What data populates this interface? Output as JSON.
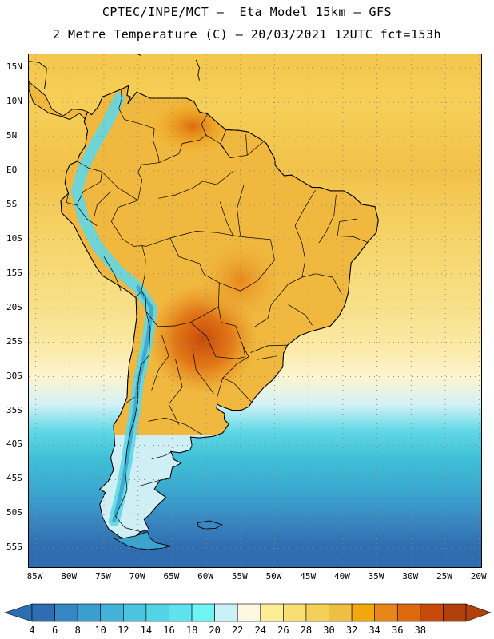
{
  "title": {
    "line1": "CPTEC/INPE/MCT –  Eta Model 15km – GFS",
    "line2": "2 Metre Temperature (C) – 20/03/2021 12UTC fct=153h"
  },
  "map": {
    "extent": {
      "lon_min": -86,
      "lon_max": -19.5,
      "lat_min": -58,
      "lat_max": 17
    },
    "lat_labels": [
      "15N",
      "10N",
      "5N",
      "EQ",
      "5S",
      "10S",
      "15S",
      "20S",
      "25S",
      "30S",
      "35S",
      "40S",
      "45S",
      "50S",
      "55S"
    ],
    "lon_labels": [
      "85W",
      "80W",
      "75W",
      "70W",
      "65W",
      "60W",
      "55W",
      "50W",
      "45W",
      "40W",
      "35W",
      "30W",
      "25W",
      "20W"
    ],
    "ocean_bands": [
      {
        "lat": 17,
        "color": "#f4c64c"
      },
      {
        "lat": 10,
        "color": "#f6cf58"
      },
      {
        "lat": 0,
        "color": "#f2c24a"
      },
      {
        "lat": -10,
        "color": "#f6d468"
      },
      {
        "lat": -20,
        "color": "#f8e08a"
      },
      {
        "lat": -26,
        "color": "#fbeaa8"
      },
      {
        "lat": -30,
        "color": "#fcf4cf"
      },
      {
        "lat": -34,
        "color": "#d4f2f6"
      },
      {
        "lat": -38,
        "color": "#5fd7e6"
      },
      {
        "lat": -42,
        "color": "#3fc0d8"
      },
      {
        "lat": -47,
        "color": "#3aa6cf"
      },
      {
        "lat": -51,
        "color": "#3a86c0"
      },
      {
        "lat": -55,
        "color": "#2f6cb0"
      }
    ]
  },
  "colorbar": {
    "labels": [
      "4",
      "6",
      "8",
      "10",
      "12",
      "14",
      "16",
      "18",
      "20",
      "22",
      "24",
      "26",
      "28",
      "30",
      "32",
      "34",
      "36",
      "38"
    ],
    "colors": [
      "#2f6db3",
      "#3586c2",
      "#3c9dcf",
      "#42b2d9",
      "#4ac4df",
      "#52d3e6",
      "#5ee2ee",
      "#6ff4f6",
      "#c9f2f8",
      "#fdf7e0",
      "#fbee97",
      "#f7df72",
      "#f4d058",
      "#efbf44",
      "#f0a80c",
      "#e8861a",
      "#de6a0f",
      "#c84a0a",
      "#b2400c"
    ]
  }
}
